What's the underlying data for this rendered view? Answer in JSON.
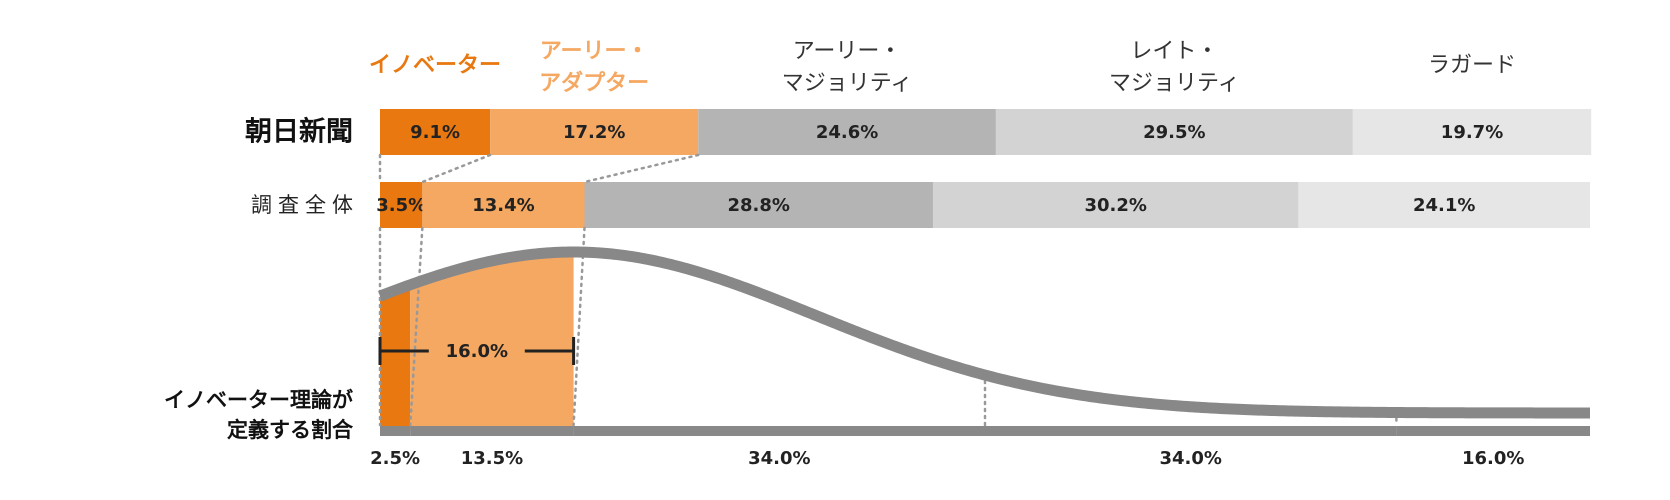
{
  "chart_data": {
    "type": "stacked-bar",
    "segments": [
      [
        "イノベーター"
      ],
      [
        "アーリー・",
        "アダプター"
      ],
      [
        "アーリー・",
        "マジョリティ"
      ],
      [
        "レイト・",
        "マジョリティ"
      ],
      [
        "ラガード"
      ]
    ],
    "segment_colors": [
      "#e8780f",
      "#f4a862",
      "#b3b4b3",
      "#d3d3d3",
      "#e6e6e6"
    ],
    "header_colors": [
      "#e8780f",
      "#f4a862",
      "#333333",
      "#333333",
      "#333333"
    ],
    "xlim": [
      0,
      100
    ],
    "series": [
      {
        "name": "朝日新聞",
        "values": [
          9.1,
          17.2,
          24.6,
          29.5,
          19.7
        ],
        "value_labels": [
          "9.1%",
          "17.2%",
          "24.6%",
          "29.5%",
          "19.7%"
        ]
      },
      {
        "name": "調査全体",
        "values": [
          3.5,
          13.4,
          28.8,
          30.2,
          24.1
        ],
        "value_labels": [
          "3.5%",
          "13.4%",
          "28.8%",
          "30.2%",
          "24.1%"
        ]
      }
    ],
    "theory": {
      "name": [
        "イノベーター理論が",
        "定義する割合"
      ],
      "values": [
        2.5,
        13.5,
        34.0,
        34.0,
        16.0
      ],
      "value_labels": [
        "2.5%",
        "13.5%",
        "34.0%",
        "34.0%",
        "16.0%"
      ],
      "color": "#888888",
      "bracket": {
        "value": 16.0,
        "label": "16.0%"
      }
    }
  }
}
